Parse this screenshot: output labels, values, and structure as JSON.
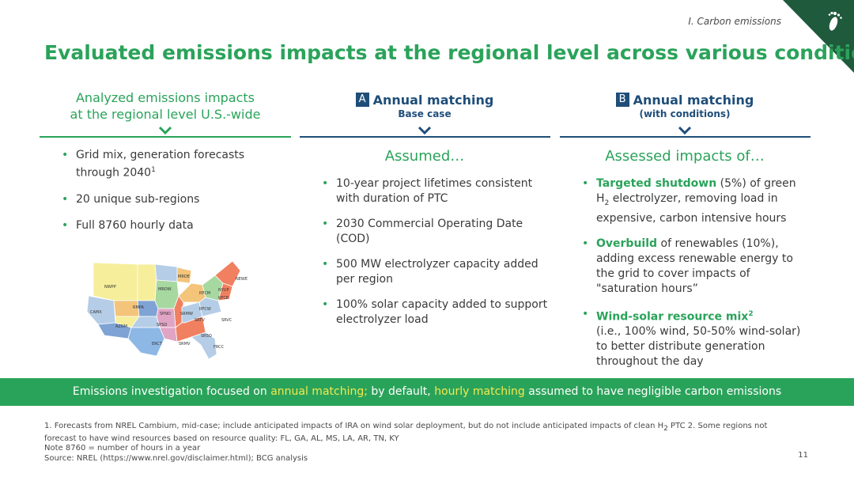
{
  "header": {
    "section_label": "I. Carbon emissions",
    "logo_icon": "footprint-icon",
    "title": "Evaluated emissions impacts at the regional level across various conditions"
  },
  "columns": {
    "col1": {
      "head_line1": "Analyzed emissions impacts",
      "head_line2": "at the regional level U.S.-wide",
      "bullets": [
        {
          "text": "Grid mix, generation forecasts through 2040",
          "sup": "1"
        },
        {
          "text": "20 unique sub-regions"
        },
        {
          "text": "Full 8760 hourly data"
        }
      ]
    },
    "col2": {
      "badge": "A",
      "head": "Annual matching",
      "sub": "Base case",
      "subhead": "Assumed…",
      "bullets": [
        "10-year project lifetimes consistent with duration of PTC",
        "2030 Commercial Operating Date (COD)",
        "500 MW electrolyzer capacity added per region",
        "100% solar capacity added to support electrolyzer load"
      ]
    },
    "col3": {
      "badge": "B",
      "head": "Annual matching",
      "sub": "(with conditions)",
      "subhead": "Assessed impacts of…",
      "b1_hl": "Targeted shutdown",
      "b1_pre": " (5%) of green H",
      "b1_sub": "2",
      "b1_post": " electrolyzer, removing load in expensive, carbon intensive hours",
      "b2_hl": "Overbuild",
      "b2_post": " of renewables (10%), adding excess renewable energy to the grid to cover impacts of \"saturation hours”",
      "b3_hl": "Wind-solar resource mix",
      "b3_sup": "2",
      "b3_post": "(i.e., 100% wind, 50-50% wind-solar) to better distribute generation throughout the day"
    }
  },
  "map": {
    "icon": "us-regions-map",
    "regions": [
      "NWPP",
      "CAMX",
      "AZNM",
      "RMPA",
      "SPNO",
      "SPSO",
      "ERCT",
      "MROW",
      "MROE",
      "SRMW",
      "SRMV",
      "SRTV",
      "SRSO",
      "FRCC",
      "RFCW",
      "RFCM",
      "RFCE",
      "NYUP",
      "NEWE",
      "SRVC"
    ]
  },
  "banner": {
    "pre": "Emissions investigation focused on ",
    "hl1": "annual matching;",
    "mid": " by default, ",
    "hl2": "hourly matching",
    "post": " assumed to have negligible carbon emissions"
  },
  "footnotes": {
    "line1_pre": "1. Forecasts from NREL Cambium, mid-case; include anticipated impacts of IRA on wind solar deployment, but do not include anticipated impacts of clean H",
    "line1_sub": "2",
    "line1_post": " PTC  2. Some regions not forecast to have wind resources based on resource quality: FL, GA, AL, MS, LA, AR, TN, KY",
    "note": "Note 8760 = number of hours in a year",
    "source": "Source: NREL (https://www.nrel.gov/disclaimer.html); BCG analysis"
  },
  "page_number": "11",
  "colors": {
    "green": "#2aa35a",
    "navy": "#1f4e79",
    "corner": "#1f5a3c",
    "highlight_yellow": "#f2e94e"
  }
}
